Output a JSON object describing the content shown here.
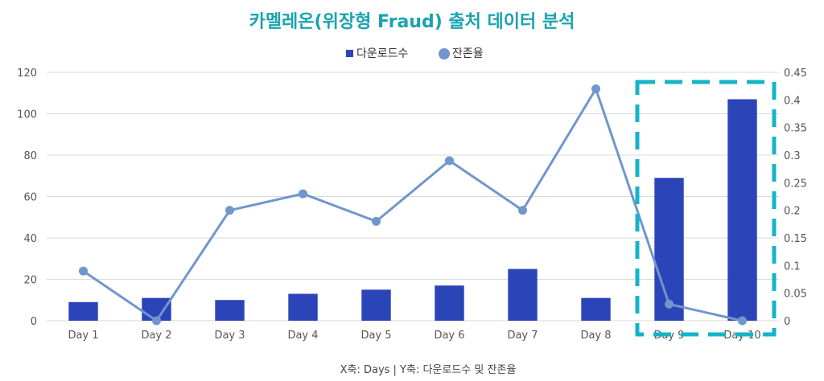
{
  "chart_data": {
    "type": "bar",
    "title": "카멜레온(위장형 Fraud) 출처 데이터 분석",
    "categories": [
      "Day 1",
      "Day 2",
      "Day 3",
      "Day 4",
      "Day 5",
      "Day 6",
      "Day 7",
      "Day 8",
      "Day 9",
      "Day 10"
    ],
    "series": [
      {
        "name": "다운로드수",
        "type": "bar",
        "axis": "left",
        "color": "#2b44b8",
        "values": [
          9,
          11,
          10,
          13,
          15,
          17,
          25,
          11,
          69,
          107
        ]
      },
      {
        "name": "잔존율",
        "type": "line",
        "axis": "right",
        "color": "#7096cc",
        "values": [
          0.09,
          0.0,
          0.2,
          0.23,
          0.18,
          0.29,
          0.2,
          0.42,
          0.03,
          0.0
        ]
      }
    ],
    "y_left": {
      "min": 0,
      "max": 120,
      "ticks": [
        "0",
        "20",
        "40",
        "60",
        "80",
        "100",
        "120"
      ]
    },
    "y_right": {
      "min": 0,
      "max": 0.45,
      "ticks": [
        "0",
        "0.05",
        "0.1",
        "0.15",
        "0.2",
        "0.25",
        "0.3",
        "0.35",
        "0.4",
        "0.45"
      ]
    },
    "grid": true,
    "legend": "top-center",
    "caption": "X축: Days | Y축: 다운로드수 및 잔존율",
    "highlight": {
      "categories": [
        "Day 9",
        "Day 10"
      ],
      "style": "dashed-box",
      "color": "#14b4c8"
    }
  }
}
